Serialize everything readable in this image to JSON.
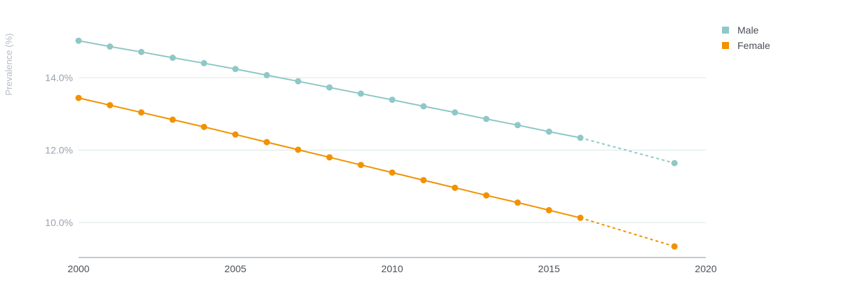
{
  "chart_data": {
    "type": "line",
    "title": "",
    "xlabel": "",
    "ylabel": "Prevalence (%)",
    "xlim": [
      2000,
      2020
    ],
    "ylim": [
      9,
      15.5
    ],
    "x_ticks": [
      "2000",
      "2005",
      "2010",
      "2015",
      "2020"
    ],
    "y_ticks": [
      "14.0%",
      "12.0%",
      "10.0%"
    ],
    "grid": true,
    "legend": "top-right",
    "series": [
      {
        "name": "Male",
        "color": "#8fc8c6",
        "x": [
          2000,
          2001,
          2002,
          2003,
          2004,
          2005,
          2006,
          2007,
          2008,
          2009,
          2010,
          2011,
          2012,
          2013,
          2014,
          2015,
          2016,
          2019
        ],
        "y": [
          15.02,
          14.86,
          14.71,
          14.55,
          14.4,
          14.24,
          14.07,
          13.9,
          13.73,
          13.56,
          13.39,
          13.21,
          13.04,
          12.86,
          12.69,
          12.51,
          12.34,
          11.64
        ],
        "projected_from_x": 2016
      },
      {
        "name": "Female",
        "color": "#f29200",
        "x": [
          2000,
          2001,
          2002,
          2003,
          2004,
          2005,
          2006,
          2007,
          2008,
          2009,
          2010,
          2011,
          2012,
          2013,
          2014,
          2015,
          2016,
          2019
        ],
        "y": [
          13.44,
          13.24,
          13.04,
          12.84,
          12.64,
          12.43,
          12.22,
          12.01,
          11.8,
          11.59,
          11.38,
          11.17,
          10.96,
          10.75,
          10.55,
          10.34,
          10.13,
          9.34
        ],
        "projected_from_x": 2016
      }
    ]
  }
}
